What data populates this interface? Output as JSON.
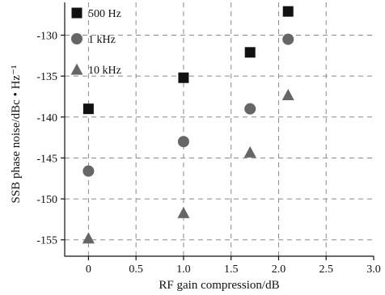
{
  "chart_data": {
    "type": "scatter",
    "xlabel": "RF gain compression/dB",
    "ylabel": "SSB phase noise/dBc • Hz⁻¹",
    "xlim": [
      -0.25,
      3.0
    ],
    "ylim": [
      -157,
      -126
    ],
    "xticks": [
      0,
      0.5,
      1.0,
      1.5,
      2.0,
      2.5,
      3.0
    ],
    "xtick_labels": [
      "0",
      "0.5",
      "1.0",
      "1.5",
      "2.0",
      "2.5",
      "3.0"
    ],
    "yticks": [
      -130,
      -135,
      -140,
      -145,
      -150,
      -155
    ],
    "ytick_labels": [
      "-130",
      "-135",
      "-140",
      "-145",
      "-150",
      "-155"
    ],
    "grid": true,
    "grid_style": "dashed",
    "legend_position": "top-left",
    "series": [
      {
        "name": "500 Hz",
        "marker": "square",
        "color": "#111111",
        "x": [
          0,
          1.0,
          1.7,
          2.1
        ],
        "y": [
          -139,
          -135.2,
          -132.1,
          -127.1
        ]
      },
      {
        "name": "1 kHz",
        "marker": "circle",
        "color": "#666666",
        "x": [
          0,
          1.0,
          1.7,
          2.1
        ],
        "y": [
          -146.6,
          -143,
          -139,
          -130.5
        ]
      },
      {
        "name": "10 kHz",
        "marker": "triangle",
        "color": "#666666",
        "x": [
          0,
          1.0,
          1.7,
          2.1
        ],
        "y": [
          -154.8,
          -151.7,
          -144.3,
          -137.3
        ]
      }
    ]
  }
}
